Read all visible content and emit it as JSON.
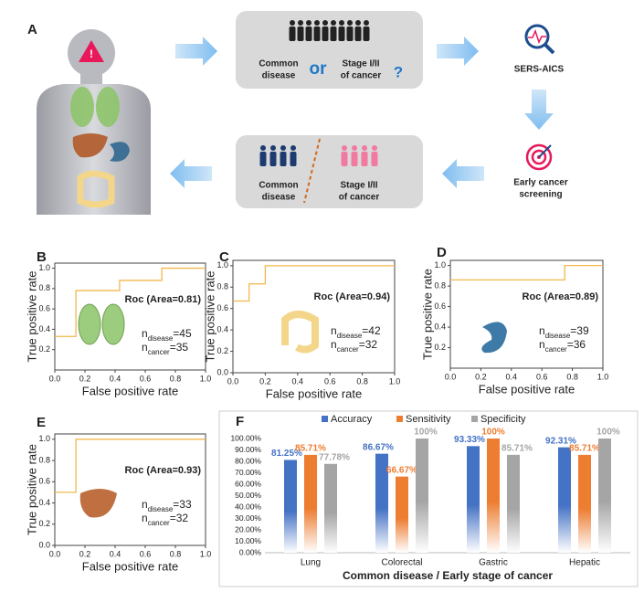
{
  "panel_a": {
    "label": "A",
    "top_box": {
      "left": [
        "Common",
        "disease"
      ],
      "or": "or",
      "right": [
        "Stage I/II",
        "of cancer"
      ],
      "question": "?"
    },
    "tool": "SERS-AICS",
    "screening": [
      "Early cancer",
      "screening"
    ],
    "bottom_box": {
      "left": [
        "Common",
        "disease"
      ],
      "right": [
        "Stage I/II",
        "of cancer"
      ]
    }
  },
  "chart_data": [
    {
      "type": "line",
      "label": "B",
      "x": [
        0,
        0.14,
        0.14,
        0.43,
        0.43,
        0.71,
        0.71,
        1
      ],
      "values": [
        0.33,
        0.33,
        0.78,
        0.78,
        0.88,
        0.88,
        1,
        1
      ],
      "color": "#f2b84b",
      "xlim": [
        0,
        1
      ],
      "ylim": [
        0,
        1.05
      ],
      "xticks": [
        {
          "value": 0,
          "label": "0.0"
        },
        {
          "value": 0.2,
          "label": "0.2"
        },
        {
          "value": 0.4,
          "label": "0.4"
        },
        {
          "value": 0.6,
          "label": "0.6"
        },
        {
          "value": 0.8,
          "label": "0.8"
        },
        {
          "value": 1,
          "label": "1.0"
        }
      ],
      "yticks": [
        {
          "value": 0.2,
          "label": "0.2"
        },
        {
          "value": 0.4,
          "label": "0.4"
        },
        {
          "value": 0.6,
          "label": "0.6"
        },
        {
          "value": 0.8,
          "label": "0.8"
        },
        {
          "value": 1,
          "label": "1.0"
        }
      ],
      "xlabel": "False positive rate",
      "ylabel": "True positive rate",
      "annotation": "Roc (Area=0.81)",
      "counts": [
        {
          "n": "n",
          "sub": "disease",
          "text": "=45"
        },
        {
          "n": "n",
          "sub": "cancer",
          "text": "=35"
        }
      ]
    },
    {
      "type": "line",
      "label": "C",
      "x": [
        0,
        0.1,
        0.1,
        0.2,
        0.2,
        1
      ],
      "values": [
        0.67,
        0.67,
        0.83,
        0.83,
        1,
        1
      ],
      "color": "#f2b84b",
      "xlim": [
        0,
        1
      ],
      "ylim": [
        0,
        1.05
      ],
      "xticks": [
        {
          "value": 0,
          "label": "0.0"
        },
        {
          "value": 0.2,
          "label": "0.2"
        },
        {
          "value": 0.4,
          "label": "0.4"
        },
        {
          "value": 0.6,
          "label": "0.6"
        },
        {
          "value": 0.8,
          "label": "0.8"
        },
        {
          "value": 1,
          "label": "1.0"
        }
      ],
      "yticks": [
        {
          "value": 0,
          "label": "0.0"
        },
        {
          "value": 0.2,
          "label": "0.2"
        },
        {
          "value": 0.4,
          "label": "0.4"
        },
        {
          "value": 0.6,
          "label": "0.6"
        },
        {
          "value": 0.8,
          "label": "0.8"
        },
        {
          "value": 1,
          "label": "1.0"
        }
      ],
      "xlabel": "False positive rate",
      "ylabel": "True positive rate",
      "annotation": "Roc (Area=0.94)",
      "counts": [
        {
          "n": "n",
          "sub": "disease",
          "text": "=42"
        },
        {
          "n": "n",
          "sub": "cancer",
          "text": "=32"
        }
      ]
    },
    {
      "type": "line",
      "label": "D",
      "x": [
        0,
        0.75,
        0.75,
        1
      ],
      "values": [
        0.86,
        0.86,
        1,
        1
      ],
      "color": "#f2b84b",
      "xlim": [
        0,
        1
      ],
      "ylim": [
        0,
        1.05
      ],
      "xticks": [
        {
          "value": 0,
          "label": "0.0"
        },
        {
          "value": 0.2,
          "label": "0.2"
        },
        {
          "value": 0.4,
          "label": "0.4"
        },
        {
          "value": 0.6,
          "label": "0.6"
        },
        {
          "value": 0.8,
          "label": "0.8"
        },
        {
          "value": 1,
          "label": "1.0"
        }
      ],
      "yticks": [
        {
          "value": 0.2,
          "label": "0.2"
        },
        {
          "value": 0.4,
          "label": "0.4"
        },
        {
          "value": 0.6,
          "label": "0.6"
        },
        {
          "value": 0.8,
          "label": "0.8"
        },
        {
          "value": 1,
          "label": "1.0"
        }
      ],
      "xlabel": "False positive rate",
      "ylabel": "True positive rate",
      "annotation": "Roc (Area=0.89)",
      "counts": [
        {
          "n": "n",
          "sub": "disease",
          "text": "=39"
        },
        {
          "n": "n",
          "sub": "cancer",
          "text": "=36"
        }
      ]
    },
    {
      "type": "line",
      "label": "E",
      "x": [
        0,
        0.14,
        0.14,
        1
      ],
      "values": [
        0.5,
        0.5,
        1,
        1
      ],
      "color": "#f2b84b",
      "xlim": [
        0,
        1
      ],
      "ylim": [
        0,
        1.05
      ],
      "xticks": [
        {
          "value": 0,
          "label": "0.0"
        },
        {
          "value": 0.2,
          "label": "0.2"
        },
        {
          "value": 0.4,
          "label": "0.4"
        },
        {
          "value": 0.6,
          "label": "0.6"
        },
        {
          "value": 0.8,
          "label": "0.8"
        },
        {
          "value": 1,
          "label": "1.0"
        }
      ],
      "yticks": [
        {
          "value": 0,
          "label": "0.0"
        },
        {
          "value": 0.2,
          "label": "0.2"
        },
        {
          "value": 0.4,
          "label": "0.4"
        },
        {
          "value": 0.6,
          "label": "0.6"
        },
        {
          "value": 0.8,
          "label": "0.8"
        },
        {
          "value": 1,
          "label": "1.0"
        }
      ],
      "xlabel": "False positive rate",
      "ylabel": "True positive rate",
      "annotation": "Roc (Area=0.93)",
      "counts": [
        {
          "n": "n",
          "sub": "disease",
          "text": "=33"
        },
        {
          "n": "n",
          "sub": "cancer",
          "text": "=32"
        }
      ]
    },
    {
      "type": "bar",
      "label": "F",
      "categories": [
        "Lung",
        "Colorectal",
        "Gastric",
        "Hepatic"
      ],
      "series": [
        {
          "name": "Accuracy",
          "color": "#4472c4",
          "values": [
            81.25,
            86.67,
            93.33,
            92.31
          ],
          "value_labels": [
            "81.25%",
            "86.67%",
            "93.33%",
            "92.31%"
          ]
        },
        {
          "name": "Sensitivity",
          "color": "#ed7d31",
          "values": [
            85.71,
            66.67,
            100,
            85.71
          ],
          "value_labels": [
            "85.71%",
            "66.67%",
            "100%",
            "85.71%"
          ]
        },
        {
          "name": "Specificity",
          "color": "#a5a5a5",
          "values": [
            77.78,
            100,
            85.71,
            100
          ],
          "value_labels": [
            "77.78%",
            "100%",
            "85.71%",
            "100%"
          ]
        }
      ],
      "ylim": [
        0,
        100
      ],
      "yticks": [
        {
          "value": 0,
          "label": "0.00%"
        },
        {
          "value": 10,
          "label": "10.00%"
        },
        {
          "value": 20,
          "label": "20.00%"
        },
        {
          "value": 30,
          "label": "30.00%"
        },
        {
          "value": 40,
          "label": "40.00%"
        },
        {
          "value": 50,
          "label": "50.00%"
        },
        {
          "value": 60,
          "label": "60.00%"
        },
        {
          "value": 70,
          "label": "70.00%"
        },
        {
          "value": 80,
          "label": "80.00%"
        },
        {
          "value": 90,
          "label": "90.00%"
        },
        {
          "value": 100,
          "label": "100.00%"
        }
      ],
      "xlabel": "Common disease / Early stage of cancer",
      "legend": "top"
    }
  ]
}
